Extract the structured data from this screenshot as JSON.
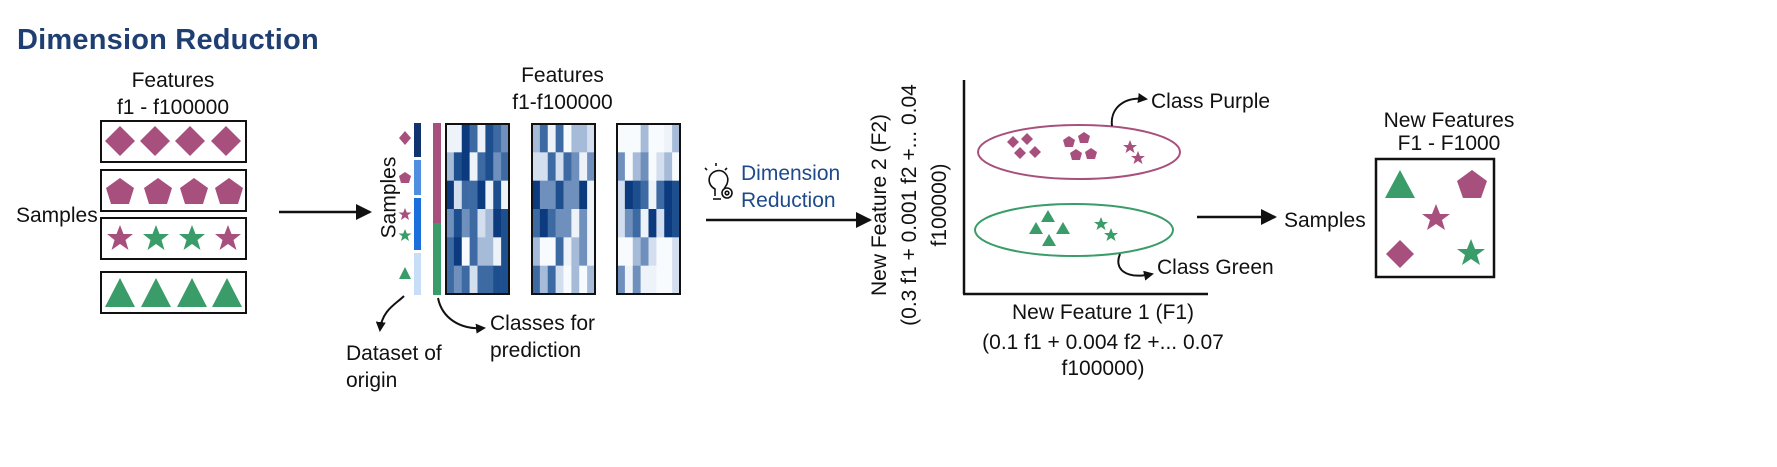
{
  "title": "Dimension Reduction",
  "left": {
    "features_line1": "Features",
    "features_line2": "f1 - f100000",
    "samples": "Samples"
  },
  "middle": {
    "features_line1": "Features",
    "features_line2": "f1-f100000",
    "samples_vertical": "Samples",
    "dataset_line1": "Dataset of",
    "dataset_line2": "origin",
    "classes_line1": "Classes for",
    "classes_line2": "prediction"
  },
  "step": {
    "line1": "Dimension",
    "line2": "Reduction",
    "icon": "lightbulb-gear-icon"
  },
  "scatter": {
    "ylabel_line1": "New Feature 2 (F2)",
    "ylabel_line2": "(0.3 f1 + 0.001 f2 +... 0.04",
    "ylabel_line3": "f100000)",
    "xlabel_line1": "New Feature 1 (F1)",
    "xlabel_line2": "(0.1 f1 + 0.004 f2 +... 0.07",
    "xlabel_line3": "f100000)",
    "class_purple": "Class Purple",
    "class_green": "Class Green"
  },
  "right": {
    "samples": "Samples",
    "new_features_line1": "New Features",
    "new_features_line2": "F1 - F1000"
  },
  "colors": {
    "purple": "#a8507d",
    "green": "#3a9c68",
    "navy": "#1f3f73",
    "heatmap_dark": "#0b3a7e"
  }
}
